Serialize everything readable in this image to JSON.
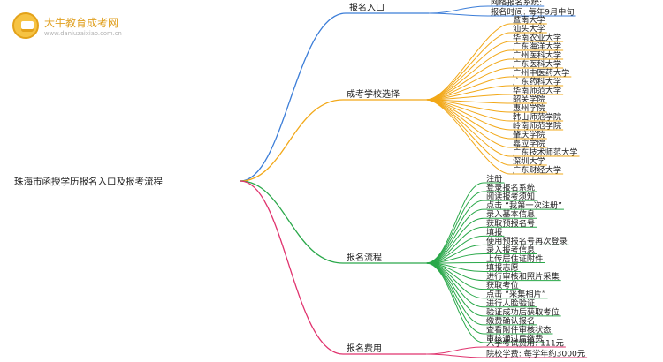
{
  "logo": {
    "name": "大牛教育成考网",
    "url": "www.daniuzaixiao.com.cn",
    "icon": "book-badge-icon",
    "color": "#e0a020"
  },
  "root": {
    "label": "珠海市函授学历报名入口及报考流程"
  },
  "branches": [
    {
      "label": "报名入口",
      "color": "#3b7dd8",
      "leaves": [
        "网络报名系统:",
        "报名时间: 每年9月中旬"
      ]
    },
    {
      "label": "成考学校选择",
      "color": "#f2a818",
      "leaves": [
        "暨南大学",
        "汕头大学",
        "华南农业大学",
        "广东海洋大学",
        "广州医科大学",
        "广东医科大学",
        "广州中医药大学",
        "广东药科大学",
        "华南师范大学",
        "韶关学院",
        "惠州学院",
        "韩山师范学院",
        "岭南师范学院",
        "肇庆学院",
        "嘉应学院",
        "广东技术师范大学",
        "深圳大学",
        "广东财经大学"
      ]
    },
    {
      "label": "报名流程",
      "color": "#2aa84a",
      "leaves": [
        "注册",
        "登录报名系统",
        "阅读报考须知",
        "点击 “我第一次注册”",
        "录入基本信息",
        "获取预报名号",
        "填报",
        "使用预报名号再次登录",
        "录入报考信息",
        "上传居住证附件",
        "填报志愿",
        "进行审核和照片采集",
        "获取考位",
        "点击 “采集相片”",
        "进行人脸验证",
        "验证成功后获取考位",
        "缴费确认报名",
        "查看附件审核状态",
        "审核通过后缴费"
      ]
    },
    {
      "label": "报名费用",
      "color": "#e0336e",
      "leaves": [
        "入学考试费用: 111元",
        "院校学费: 每学年约3000元"
      ]
    }
  ]
}
